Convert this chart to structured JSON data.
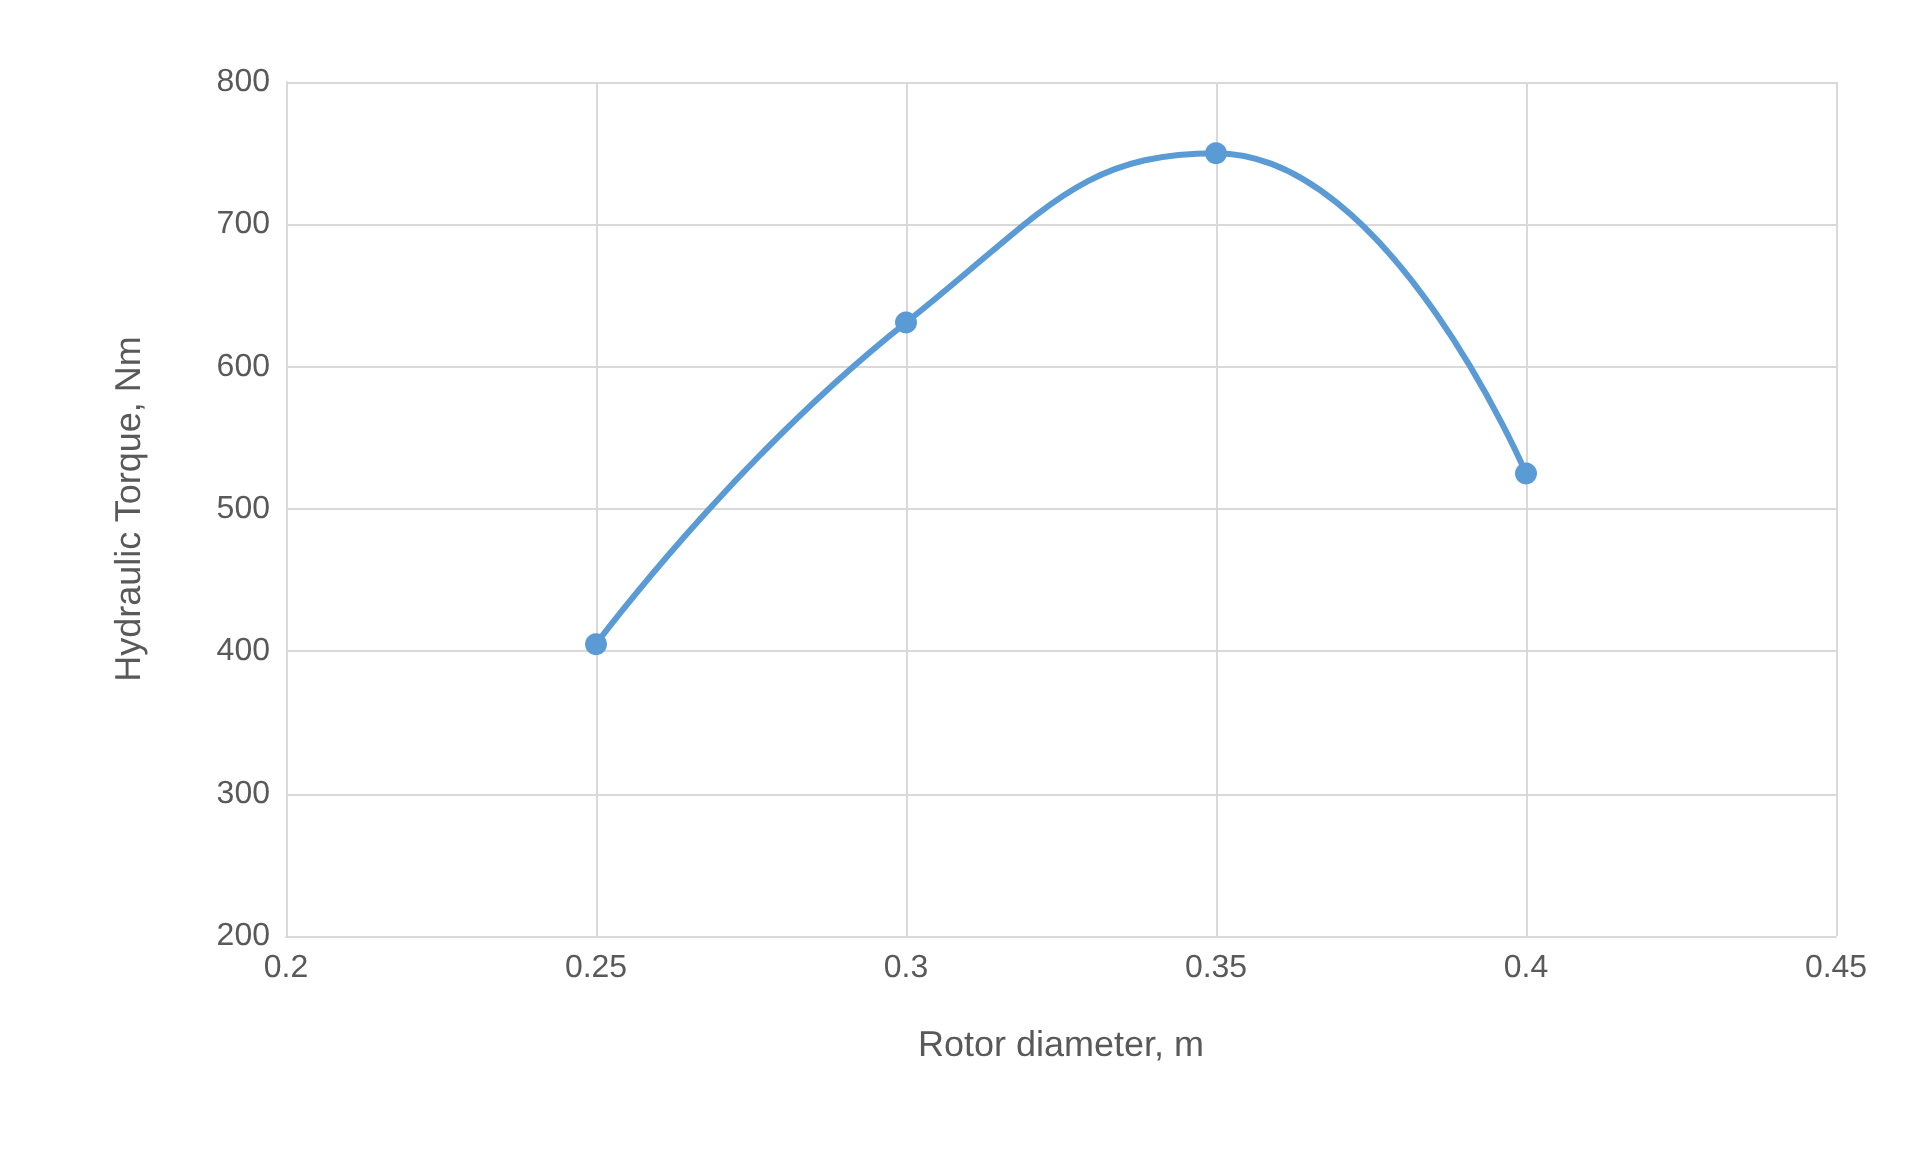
{
  "chart_data": {
    "type": "line",
    "xlabel": "Rotor diameter, m",
    "ylabel": "Hydraulic Torque, Nm",
    "x": [
      0.25,
      0.3,
      0.35,
      0.4
    ],
    "series": [
      {
        "color": "#5b9bd5",
        "values": [
          405,
          631,
          750,
          525
        ]
      }
    ],
    "xlim": [
      0.2,
      0.45
    ],
    "xticks": [
      0.2,
      0.25,
      0.3,
      0.35,
      0.4,
      0.45
    ],
    "ylim": [
      200,
      800
    ],
    "yticks": [
      200,
      300,
      400,
      500,
      600,
      700,
      800
    ],
    "grid": true,
    "marker": "circle",
    "line_style": "solid"
  }
}
